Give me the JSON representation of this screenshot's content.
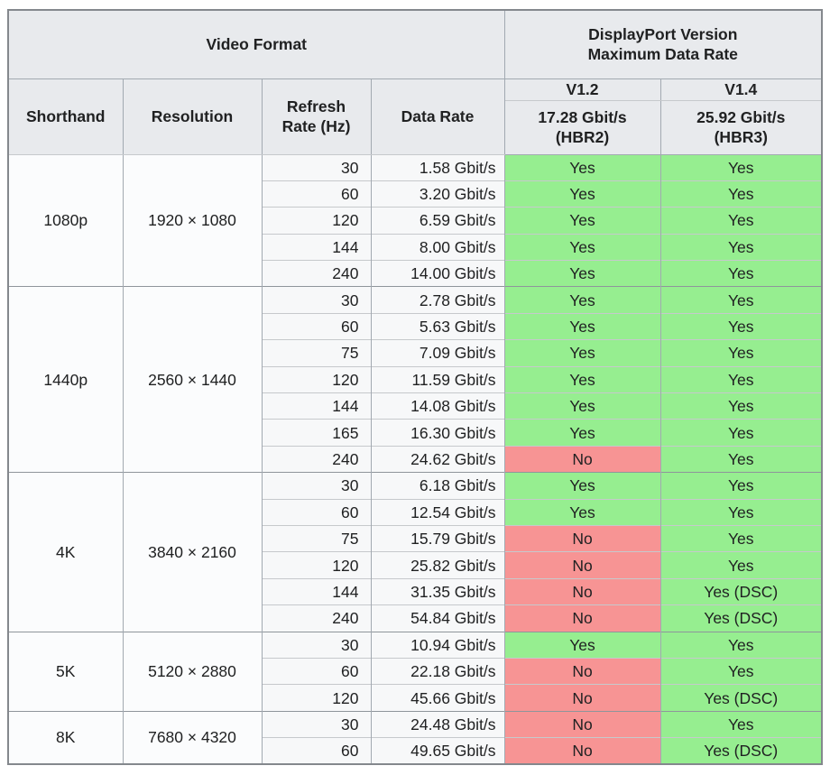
{
  "table": {
    "header": {
      "video_format_label": "Video Format",
      "dp_version_label": "DisplayPort Version\nMaximum Data Rate",
      "col_shorthand": "Shorthand",
      "col_resolution": "Resolution",
      "col_refresh_rate": "Refresh\nRate (Hz)",
      "col_data_rate": "Data Rate",
      "versions": [
        {
          "label": "V1.2",
          "max_rate": "17.28 Gbit/s\n(HBR2)"
        },
        {
          "label": "V1.4",
          "max_rate": "25.92 Gbit/s\n(HBR3)"
        }
      ]
    }
  },
  "colors": {
    "yes_bg": "#96ee90",
    "no_bg": "#f79494",
    "header_bg": "#e8eaed",
    "grid": "#a2a9b1"
  },
  "chart_data": {
    "type": "table",
    "title": "DisplayPort Version Maximum Data Rate",
    "column_groups": [
      "Video Format",
      "DisplayPort Version Maximum Data Rate"
    ],
    "columns": [
      "Shorthand",
      "Resolution",
      "Refresh Rate (Hz)",
      "Data Rate",
      "V1.2 17.28 Gbit/s (HBR2)",
      "V1.4 25.92 Gbit/s (HBR3)"
    ],
    "rows": [
      [
        "1080p",
        "1920 × 1080",
        30,
        "1.58 Gbit/s",
        "Yes",
        "Yes"
      ],
      [
        "1080p",
        "1920 × 1080",
        60,
        "3.20 Gbit/s",
        "Yes",
        "Yes"
      ],
      [
        "1080p",
        "1920 × 1080",
        120,
        "6.59 Gbit/s",
        "Yes",
        "Yes"
      ],
      [
        "1080p",
        "1920 × 1080",
        144,
        "8.00 Gbit/s",
        "Yes",
        "Yes"
      ],
      [
        "1080p",
        "1920 × 1080",
        240,
        "14.00 Gbit/s",
        "Yes",
        "Yes"
      ],
      [
        "1440p",
        "2560 × 1440",
        30,
        "2.78 Gbit/s",
        "Yes",
        "Yes"
      ],
      [
        "1440p",
        "2560 × 1440",
        60,
        "5.63 Gbit/s",
        "Yes",
        "Yes"
      ],
      [
        "1440p",
        "2560 × 1440",
        75,
        "7.09 Gbit/s",
        "Yes",
        "Yes"
      ],
      [
        "1440p",
        "2560 × 1440",
        120,
        "11.59 Gbit/s",
        "Yes",
        "Yes"
      ],
      [
        "1440p",
        "2560 × 1440",
        144,
        "14.08 Gbit/s",
        "Yes",
        "Yes"
      ],
      [
        "1440p",
        "2560 × 1440",
        165,
        "16.30 Gbit/s",
        "Yes",
        "Yes"
      ],
      [
        "1440p",
        "2560 × 1440",
        240,
        "24.62 Gbit/s",
        "No",
        "Yes"
      ],
      [
        "4K",
        "3840 × 2160",
        30,
        "6.18 Gbit/s",
        "Yes",
        "Yes"
      ],
      [
        "4K",
        "3840 × 2160",
        60,
        "12.54 Gbit/s",
        "Yes",
        "Yes"
      ],
      [
        "4K",
        "3840 × 2160",
        75,
        "15.79 Gbit/s",
        "No",
        "Yes"
      ],
      [
        "4K",
        "3840 × 2160",
        120,
        "25.82 Gbit/s",
        "No",
        "Yes"
      ],
      [
        "4K",
        "3840 × 2160",
        144,
        "31.35 Gbit/s",
        "No",
        "Yes (DSC)"
      ],
      [
        "4K",
        "3840 × 2160",
        240,
        "54.84 Gbit/s",
        "No",
        "Yes (DSC)"
      ],
      [
        "5K",
        "5120 × 2880",
        30,
        "10.94 Gbit/s",
        "Yes",
        "Yes"
      ],
      [
        "5K",
        "5120 × 2880",
        60,
        "22.18 Gbit/s",
        "No",
        "Yes"
      ],
      [
        "5K",
        "5120 × 2880",
        120,
        "45.66 Gbit/s",
        "No",
        "Yes (DSC)"
      ],
      [
        "8K",
        "7680 × 4320",
        30,
        "24.48 Gbit/s",
        "No",
        "Yes"
      ],
      [
        "8K",
        "7680 × 4320",
        60,
        "49.65 Gbit/s",
        "No",
        "Yes (DSC)"
      ]
    ]
  }
}
